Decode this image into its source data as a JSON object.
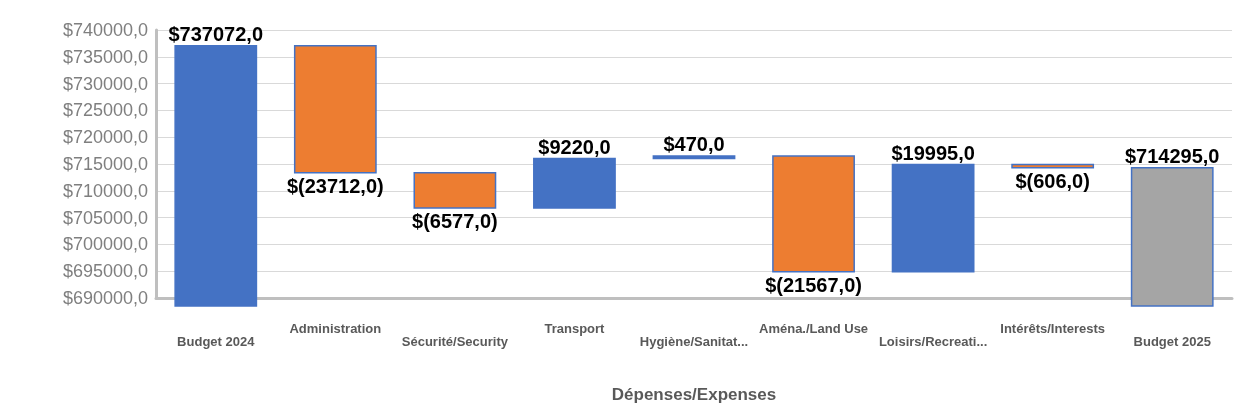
{
  "chart_data": {
    "type": "bar",
    "xlabel": "Dépenses/Expenses",
    "categories": [
      "Budget 2024",
      "Administration",
      "Sécurité/Security",
      "Transport",
      "Hygiène/Sanitat...",
      "Aména./Land Use",
      "Loisirs/Recreati...",
      "Intérêts/Interests",
      "Budget 2025"
    ],
    "values": [
      737072,
      -23712,
      -6577,
      9220,
      470,
      -21567,
      19995,
      -606,
      714295
    ],
    "base": [
      0,
      737072,
      713360,
      706783,
      716003,
      716473,
      694906,
      714901,
      0
    ],
    "colors": [
      "#4472c4",
      "#ed7d31",
      "#ed7d31",
      "#4472c4",
      "#4472c4",
      "#ed7d31",
      "#4472c4",
      "#ed7d31",
      "#a5a5a5"
    ],
    "value_labels": [
      "$737072,0",
      "$(23712,0)",
      "$(6577,0)",
      "$9220,0",
      "$470,0",
      "$(21567,0)",
      "$19995,0",
      "$(606,0)",
      "$714295,0"
    ],
    "ylim": [
      690000,
      740000
    ],
    "yticks": [
      {
        "value": 690000,
        "label": "$690000,0"
      },
      {
        "value": 695000,
        "label": "$695000,0"
      },
      {
        "value": 700000,
        "label": "$700000,0"
      },
      {
        "value": 705000,
        "label": "$705000,0"
      },
      {
        "value": 710000,
        "label": "$710000,0"
      },
      {
        "value": 715000,
        "label": "$715000,0"
      },
      {
        "value": 720000,
        "label": "$720000,0"
      },
      {
        "value": 725000,
        "label": "$725000,0"
      },
      {
        "value": 730000,
        "label": "$730000,0"
      },
      {
        "value": 735000,
        "label": "$735000,0"
      },
      {
        "value": 740000,
        "label": "$740000,0"
      }
    ],
    "grid": "y"
  }
}
